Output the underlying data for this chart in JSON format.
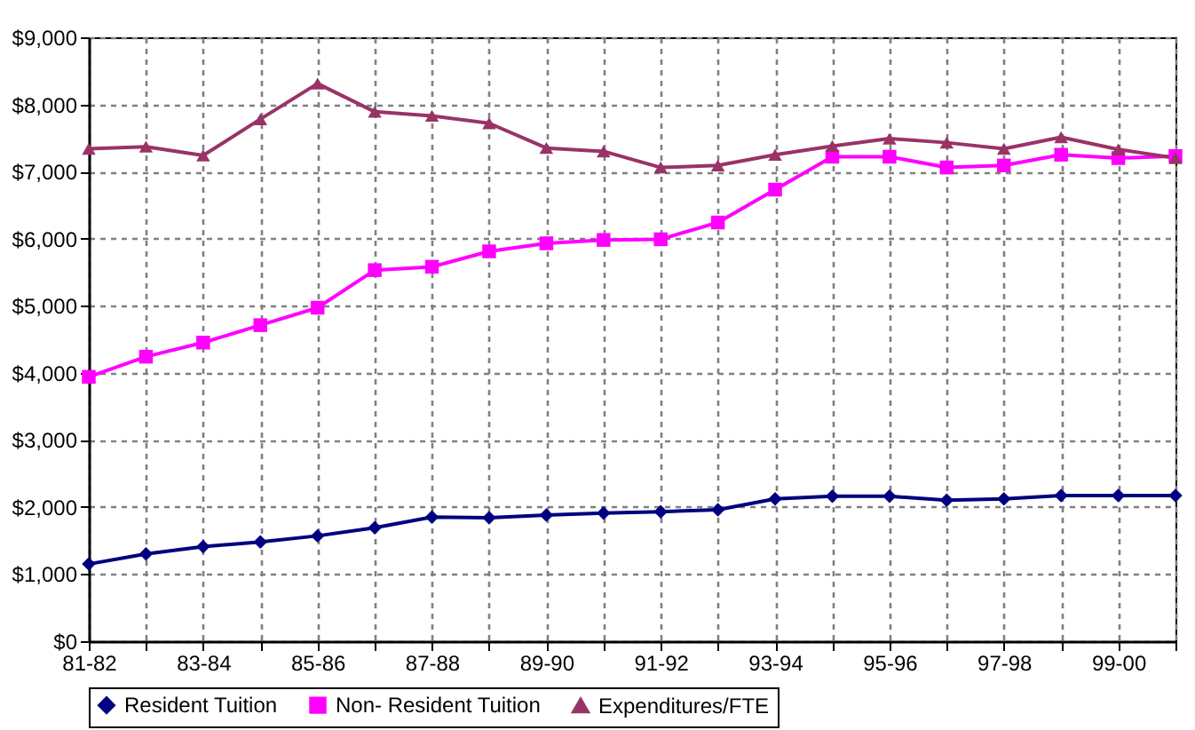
{
  "chart_data": {
    "type": "line",
    "categories": [
      "81-82",
      null,
      "83-84",
      null,
      "85-86",
      null,
      "87-88",
      null,
      "89-90",
      null,
      "91-92",
      null,
      "93-94",
      null,
      "95-96",
      null,
      "97-98",
      null,
      "99-00",
      null
    ],
    "series": [
      {
        "name": "Resident Tuition",
        "color": "#000080",
        "marker": "diamond",
        "values": [
          1150,
          1300,
          1410,
          1480,
          1570,
          1690,
          1850,
          1840,
          1880,
          1910,
          1930,
          1960,
          2120,
          2160,
          2160,
          2100,
          2120,
          2170,
          2170,
          2170
        ]
      },
      {
        "name": "Non- Resident Tuition",
        "color": "#ff00ff",
        "marker": "square",
        "values": [
          3940,
          4240,
          4450,
          4710,
          4970,
          5530,
          5580,
          5810,
          5930,
          5980,
          5990,
          6240,
          6730,
          7220,
          7220,
          7060,
          7090,
          7250,
          7200,
          7230
        ]
      },
      {
        "name": "Expenditures/FTE",
        "color": "#993366",
        "marker": "triangle",
        "values": [
          7340,
          7370,
          7240,
          7780,
          8310,
          7890,
          7830,
          7720,
          7350,
          7300,
          7060,
          7090,
          7250,
          7380,
          7490,
          7430,
          7340,
          7510,
          7330,
          7200
        ]
      }
    ],
    "ylim": [
      0,
      9000
    ],
    "yticks": [
      {
        "value": 0,
        "label": "$0"
      },
      {
        "value": 1000,
        "label": "$1,000"
      },
      {
        "value": 2000,
        "label": "$2,000"
      },
      {
        "value": 3000,
        "label": "$3,000"
      },
      {
        "value": 4000,
        "label": "$4,000"
      },
      {
        "value": 5000,
        "label": "$5,000"
      },
      {
        "value": 6000,
        "label": "$6,000"
      },
      {
        "value": 7000,
        "label": "$7,000"
      },
      {
        "value": 8000,
        "label": "$8,000"
      },
      {
        "value": 9000,
        "label": "$9,000"
      }
    ],
    "grid": true,
    "legend": "bottom",
    "line_style": "solid"
  }
}
